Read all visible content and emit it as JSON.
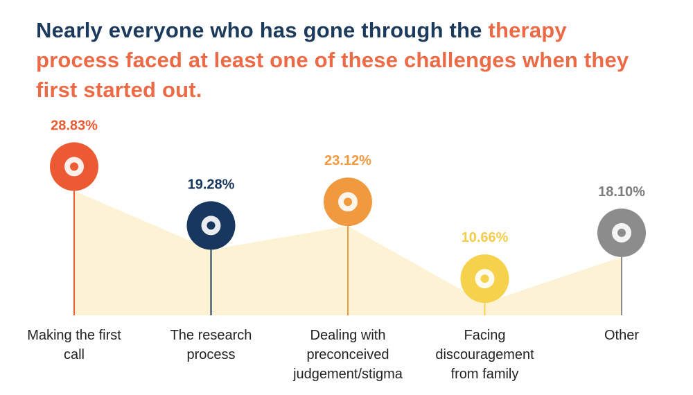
{
  "chart_data": {
    "type": "area",
    "title_parts": [
      "Nearly everyone who has gone through the",
      "therapy process faced at least one of these challenges when they first started out."
    ],
    "title_colors": [
      "#1b3a5c",
      "#ec6a45"
    ],
    "categories": [
      "Making the first call",
      "The research process",
      "Dealing with preconceived judgement/stigma",
      "Facing discouragement from family",
      "Other"
    ],
    "values": [
      28.83,
      19.28,
      23.12,
      10.66,
      18.1
    ],
    "value_labels": [
      "28.83%",
      "19.28%",
      "23.12%",
      "10.66%",
      "18.10%"
    ],
    "colors": [
      "#ec5a33",
      "#17375e",
      "#f0993e",
      "#f6d24c",
      "#8c8c8c"
    ],
    "label_colors": [
      "#ec5a33",
      "#17375e",
      "#f0993e",
      "#f3cc4a",
      "#7c7c7c"
    ],
    "area_color": "#fdf2d4"
  }
}
